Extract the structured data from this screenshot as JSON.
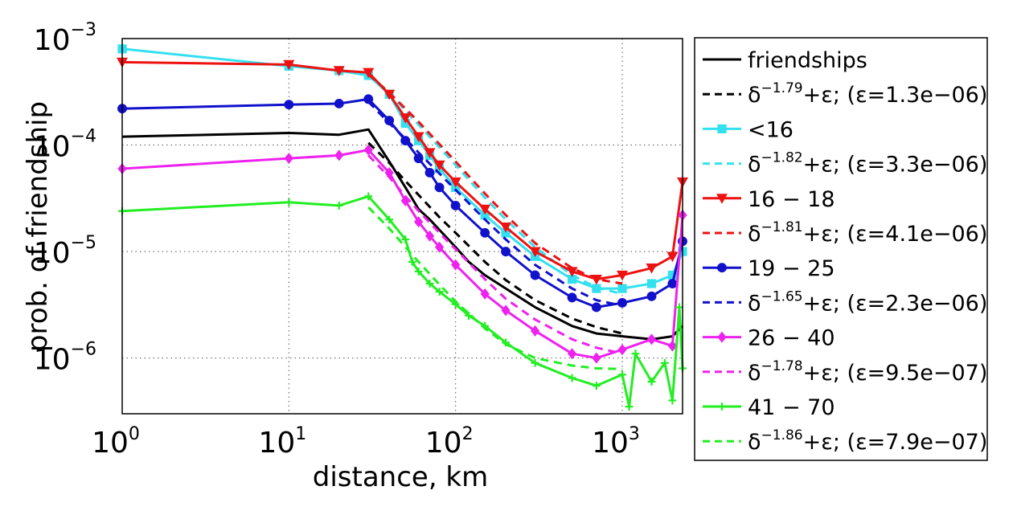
{
  "chart_data": {
    "type": "line",
    "xlabel": "distance, km",
    "ylabel": "prob. of friendship",
    "x_scale": "log",
    "y_scale": "log",
    "xlim": [
      1,
      2300
    ],
    "ylim": [
      3e-07,
      0.001
    ],
    "grid": true,
    "legend_position": "outside-right",
    "x_ticks": [
      {
        "base": "10",
        "exp": "0",
        "value": 1
      },
      {
        "base": "10",
        "exp": "1",
        "value": 10
      },
      {
        "base": "10",
        "exp": "2",
        "value": 100
      },
      {
        "base": "10",
        "exp": "3",
        "value": 1000
      }
    ],
    "y_ticks": [
      {
        "base": "10",
        "exp": "−3",
        "value": 0.001
      },
      {
        "base": "10",
        "exp": "−4",
        "value": 0.0001
      },
      {
        "base": "10",
        "exp": "−5",
        "value": 1e-05
      },
      {
        "base": "10",
        "exp": "−6",
        "value": 1e-06
      }
    ],
    "series": [
      {
        "name": "friendships",
        "color": "#000000",
        "style": "solid",
        "marker": "none",
        "x": [
          1,
          10,
          20,
          30,
          40,
          50,
          60,
          70,
          80,
          100,
          120,
          150,
          200,
          300,
          500,
          700,
          1000,
          1500,
          2000,
          2300
        ],
        "y": [
          0.00012,
          0.00013,
          0.000125,
          0.00014,
          7e-05,
          4e-05,
          2.5e-05,
          2e-05,
          1.6e-05,
          1.1e-05,
          8e-06,
          6e-06,
          4.5e-06,
          3e-06,
          2e-06,
          1.7e-06,
          1.6e-06,
          1.5e-06,
          1.6e-06,
          2e-06
        ]
      },
      {
        "name": "δ^{−1.79}+ε; (ε=1.3e−06)",
        "color": "#000000",
        "style": "dashed",
        "marker": "none",
        "x": [
          30,
          40,
          50,
          60,
          80,
          100,
          150,
          200,
          300,
          500,
          700,
          1000
        ],
        "y": [
          0.000105,
          6.8e-05,
          4.6e-05,
          3.4e-05,
          2.1e-05,
          1.5e-05,
          8e-06,
          5.4e-06,
          3.5e-06,
          2.35e-06,
          1.95e-06,
          1.7e-06
        ]
      },
      {
        "name": "<16",
        "color": "#33e0f0",
        "style": "solid",
        "marker": "square",
        "x": [
          1,
          10,
          20,
          30,
          40,
          50,
          60,
          70,
          80,
          100,
          150,
          200,
          300,
          500,
          700,
          1000,
          1500,
          2000,
          2300
        ],
        "y": [
          0.0008,
          0.00055,
          0.0005,
          0.00045,
          0.0003,
          0.00016,
          0.00011,
          8e-05,
          6e-05,
          4e-05,
          2.2e-05,
          1.5e-05,
          9e-06,
          5.5e-06,
          4.5e-06,
          4.5e-06,
          5e-06,
          6e-06,
          1e-05
        ]
      },
      {
        "name": "δ^{−1.82}+ε; (ε=3.3e−06)",
        "color": "#33e0f0",
        "style": "dashed",
        "marker": "none",
        "x": [
          30,
          40,
          50,
          60,
          80,
          100,
          150,
          200,
          300,
          500,
          700,
          1000
        ],
        "y": [
          0.00047,
          0.00031,
          0.00021,
          0.000155,
          9.5e-05,
          6.5e-05,
          3.2e-05,
          2e-05,
          1.1e-05,
          6e-06,
          4.6e-06,
          4e-06
        ]
      },
      {
        "name": "16 − 18",
        "color": "#ee1111",
        "style": "solid",
        "marker": "triangle-down",
        "x": [
          1,
          10,
          20,
          30,
          40,
          50,
          60,
          70,
          80,
          100,
          150,
          200,
          300,
          500,
          700,
          1000,
          1500,
          2000,
          2300
        ],
        "y": [
          0.0006,
          0.00057,
          0.0005,
          0.00048,
          0.0003,
          0.00018,
          0.00012,
          8.5e-05,
          6.5e-05,
          4.5e-05,
          2.5e-05,
          1.7e-05,
          1e-05,
          6.5e-06,
          5.5e-06,
          6e-06,
          7e-06,
          9e-06,
          4.5e-05
        ]
      },
      {
        "name": "δ^{−1.81}+ε; (ε=4.1e−06)",
        "color": "#ee1111",
        "style": "dashed",
        "marker": "none",
        "x": [
          30,
          40,
          50,
          60,
          80,
          100,
          150,
          200,
          300,
          500,
          700,
          1000
        ],
        "y": [
          0.00046,
          0.00031,
          0.00022,
          0.000165,
          0.000102,
          7e-05,
          3.5e-05,
          2.2e-05,
          1.2e-05,
          7e-06,
          5.5e-06,
          5e-06
        ]
      },
      {
        "name": "19 − 25",
        "color": "#1111cc",
        "style": "solid",
        "marker": "circle",
        "x": [
          1,
          10,
          20,
          30,
          40,
          50,
          60,
          70,
          80,
          100,
          150,
          200,
          300,
          500,
          700,
          1000,
          1500,
          2000,
          2300
        ],
        "y": [
          0.00022,
          0.00024,
          0.000245,
          0.00027,
          0.00017,
          0.00011,
          7.5e-05,
          5.5e-05,
          4e-05,
          2.7e-05,
          1.5e-05,
          1e-05,
          6e-06,
          3.7e-06,
          3e-06,
          3.3e-06,
          3.8e-06,
          5e-06,
          1.25e-05
        ]
      },
      {
        "name": "δ^{−1.65}+ε; (ε=2.3e−06)",
        "color": "#1111cc",
        "style": "dashed",
        "marker": "none",
        "x": [
          30,
          40,
          50,
          60,
          80,
          100,
          150,
          200,
          300,
          500,
          700,
          1000
        ],
        "y": [
          0.000255,
          0.00016,
          0.000115,
          8.5e-05,
          5.4e-05,
          3.8e-05,
          2e-05,
          1.3e-05,
          7.5e-06,
          4.5e-06,
          3.5e-06,
          3.1e-06
        ]
      },
      {
        "name": "26 − 40",
        "color": "#ee22ee",
        "style": "solid",
        "marker": "diamond",
        "x": [
          1,
          10,
          20,
          30,
          40,
          50,
          60,
          70,
          80,
          100,
          150,
          200,
          300,
          500,
          700,
          1000,
          1500,
          2000,
          2300
        ],
        "y": [
          6e-05,
          7.5e-05,
          8e-05,
          9e-05,
          5.5e-05,
          3e-05,
          1.9e-05,
          1.4e-05,
          1.1e-05,
          7.5e-06,
          4e-06,
          2.8e-06,
          1.8e-06,
          1.1e-06,
          1e-06,
          1.2e-06,
          1.5e-06,
          1.3e-06,
          2.2e-05
        ]
      },
      {
        "name": "δ^{−1.78}+ε; (ε=9.5e−07)",
        "color": "#ee22ee",
        "style": "dashed",
        "marker": "none",
        "x": [
          30,
          40,
          50,
          60,
          80,
          100,
          150,
          200,
          300,
          500,
          700,
          1000
        ],
        "y": [
          8e-05,
          5e-05,
          3.3e-05,
          2.4e-05,
          1.5e-05,
          1.05e-05,
          5.5e-06,
          3.6e-06,
          2.3e-06,
          1.5e-06,
          1.25e-06,
          1.1e-06
        ]
      },
      {
        "name": "41 − 70",
        "color": "#22ee22",
        "style": "solid",
        "marker": "plus",
        "x": [
          1,
          10,
          20,
          30,
          40,
          50,
          55,
          60,
          70,
          80,
          100,
          120,
          150,
          200,
          300,
          500,
          700,
          1000,
          1100,
          1200,
          1500,
          1800,
          2000,
          2200,
          2300
        ],
        "y": [
          2.4e-05,
          2.9e-05,
          2.7e-05,
          3.3e-05,
          2e-05,
          1.3e-05,
          8e-06,
          6.5e-06,
          5e-06,
          4.2e-06,
          3.2e-06,
          2.5e-06,
          2e-06,
          1.4e-06,
          9e-07,
          6.5e-07,
          5.5e-07,
          7e-07,
          3.5e-07,
          1.1e-06,
          6e-07,
          9e-07,
          4e-07,
          3e-06,
          8e-07
        ]
      },
      {
        "name": "δ^{−1.86}+ε; (ε=7.9e−07)",
        "color": "#22ee22",
        "style": "dashed",
        "marker": "none",
        "x": [
          30,
          40,
          50,
          60,
          80,
          100,
          150,
          200,
          300,
          500,
          700,
          1000
        ],
        "y": [
          2.6e-05,
          1.65e-05,
          1.1e-05,
          8e-06,
          4.9e-06,
          3.4e-06,
          1.9e-06,
          1.35e-06,
          1e-06,
          8.5e-07,
          8e-07,
          7.9e-07
        ]
      }
    ]
  }
}
